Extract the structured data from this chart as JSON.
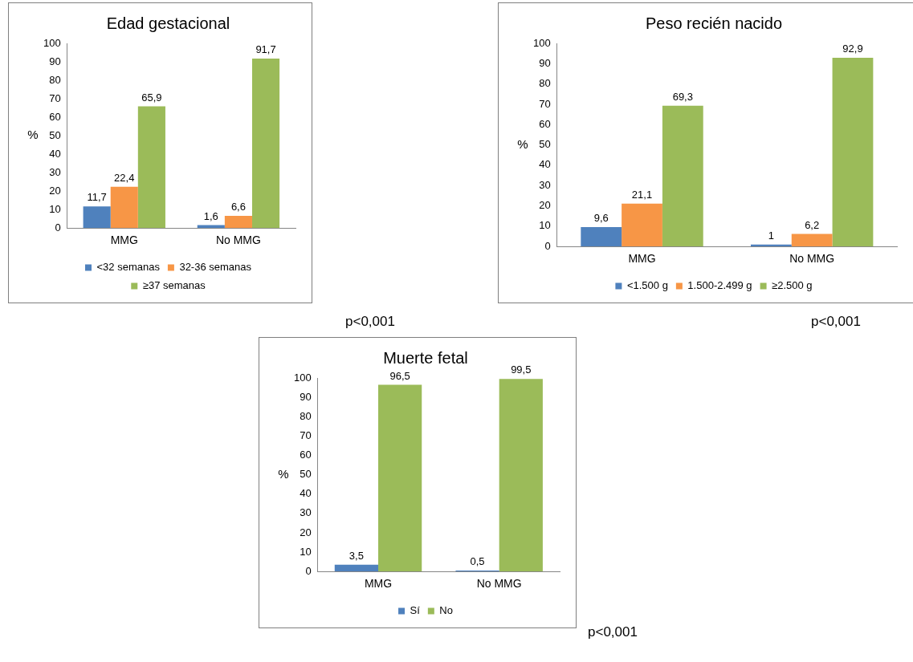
{
  "chart_data": [
    {
      "type": "bar",
      "title": "Edad gestacional",
      "ylabel": "%",
      "categories": [
        "MMG",
        "No MMG"
      ],
      "ylim": [
        0,
        100
      ],
      "yticks": [
        0,
        10,
        20,
        30,
        40,
        50,
        60,
        70,
        80,
        90,
        100
      ],
      "grid": false,
      "legend": "bottom",
      "annotations": [
        "p<0,001"
      ],
      "series": [
        {
          "name": "<32 semanas",
          "color": "#4f81bd",
          "values": [
            11.7,
            1.6
          ],
          "value_labels": [
            "11,7",
            "1,6"
          ]
        },
        {
          "name": "32-36 semanas",
          "color": "#f79646",
          "values": [
            22.4,
            6.6
          ],
          "value_labels": [
            "22,4",
            "6,6"
          ]
        },
        {
          "name": "≥37 semanas",
          "color": "#9bbb59",
          "values": [
            65.9,
            91.7
          ],
          "value_labels": [
            "65,9",
            "91,7"
          ]
        }
      ]
    },
    {
      "type": "bar",
      "title": "Peso recién nacido",
      "ylabel": "%",
      "categories": [
        "MMG",
        "No MMG"
      ],
      "ylim": [
        0,
        100
      ],
      "yticks": [
        0,
        10,
        20,
        30,
        40,
        50,
        60,
        70,
        80,
        90,
        100
      ],
      "grid": false,
      "legend": "bottom",
      "annotations": [
        "p<0,001"
      ],
      "series": [
        {
          "name": "<1.500 g",
          "color": "#4f81bd",
          "values": [
            9.6,
            1
          ],
          "value_labels": [
            "9,6",
            "1"
          ]
        },
        {
          "name": "1.500-2.499 g",
          "color": "#f79646",
          "values": [
            21.1,
            6.2
          ],
          "value_labels": [
            "21,1",
            "6,2"
          ]
        },
        {
          "name": "≥2.500 g",
          "color": "#9bbb59",
          "values": [
            69.3,
            92.9
          ],
          "value_labels": [
            "69,3",
            "92,9"
          ]
        }
      ]
    },
    {
      "type": "bar",
      "title": "Muerte fetal",
      "ylabel": "%",
      "categories": [
        "MMG",
        "No MMG"
      ],
      "ylim": [
        0,
        100
      ],
      "yticks": [
        0,
        10,
        20,
        30,
        40,
        50,
        60,
        70,
        80,
        90,
        100
      ],
      "grid": false,
      "legend": "bottom",
      "annotations": [
        "p<0,001"
      ],
      "series": [
        {
          "name": "Sí",
          "color": "#4f81bd",
          "values": [
            3.5,
            0.5
          ],
          "value_labels": [
            "3,5",
            "0,5"
          ]
        },
        {
          "name": "No",
          "color": "#9bbb59",
          "values": [
            96.5,
            99.5
          ],
          "value_labels": [
            "96,5",
            "99,5"
          ]
        }
      ]
    }
  ]
}
